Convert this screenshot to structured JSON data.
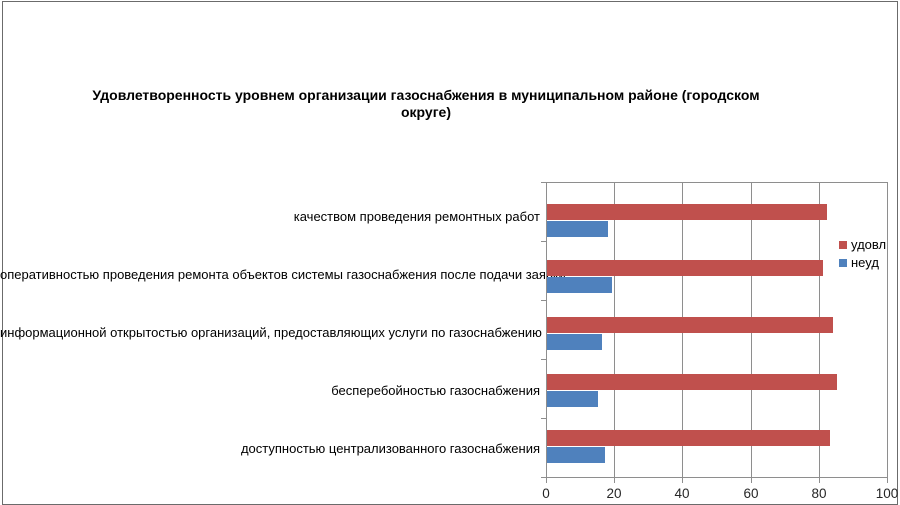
{
  "frame": {
    "background": "#ffffff",
    "border_color": "#6b6b6b"
  },
  "chart_data": {
    "type": "bar",
    "orientation": "horizontal",
    "title": "Удовлетворенность уровнем организации газоснабжения в муниципальном районе (городском округе)",
    "categories": [
      "качеством проведения ремонтных работ",
      "оперативностью проведения ремонта объектов системы газоснабжения после подачи заявки",
      "информационной открытостью организаций, предоставляющих услуги по газоснабжению",
      "бесперебойностью газоснабжения",
      "доступностью централизованного газоснабжения"
    ],
    "series": [
      {
        "name": "удовл",
        "color": "#C0504D",
        "values": [
          82,
          81,
          84,
          85,
          83
        ]
      },
      {
        "name": "неуд",
        "color": "#4F81BD",
        "values": [
          18,
          19,
          16,
          15,
          17
        ]
      }
    ],
    "xlabel": "",
    "ylabel": "",
    "xlim": [
      0,
      100
    ],
    "x_ticks": [
      0,
      20,
      40,
      60,
      80,
      100
    ],
    "grid": true,
    "legend_position": "inside-right",
    "gridline_color": "#8e8e8e",
    "axis_text_color": "#262626"
  }
}
